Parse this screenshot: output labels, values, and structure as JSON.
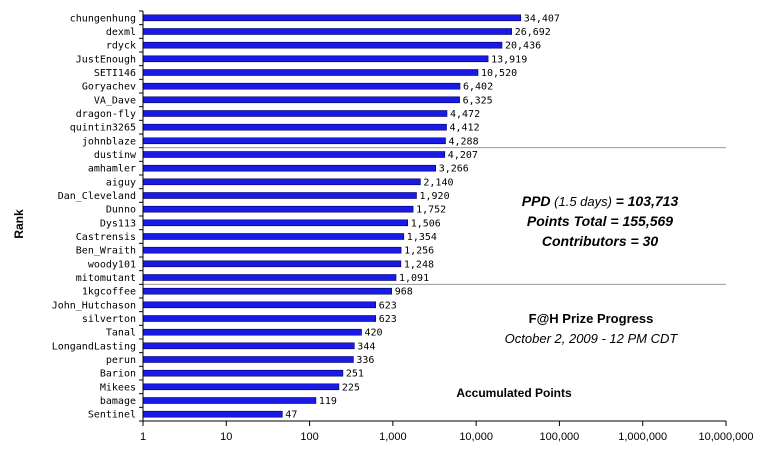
{
  "chart_data": {
    "type": "bar",
    "orientation": "horizontal",
    "x_scale": "log",
    "xlim": [
      1,
      10000000
    ],
    "x_ticks": [
      "1",
      "10",
      "100",
      "1,000",
      "10,000",
      "100,000",
      "1,000,000",
      "10,000,000"
    ],
    "ylabel": "Rank",
    "bar_color": "#1a1ae6",
    "grid": "horizontal lines at category groups of 10",
    "categories": [
      "chungenhung",
      "dexml",
      "rdyck",
      "JustEnough",
      "SETI146",
      "Goryachev",
      "VA_Dave",
      "dragon-fly",
      "quintin3265",
      "johnblaze",
      "dustinw",
      "amhamler",
      "aiguy",
      "Dan_Cleveland",
      "Dunno",
      "Dys113",
      "Castrensis",
      "Ben_Wraith",
      "woody101",
      "mitomutant",
      "1kgcoffee",
      "John_Hutchason",
      "silverton",
      "Tanal",
      "LongandLasting",
      "perun",
      "Barion",
      "Mikees",
      "bamage",
      "Sentinel"
    ],
    "values": [
      34407,
      26692,
      20436,
      13919,
      10520,
      6402,
      6325,
      4472,
      4412,
      4288,
      4207,
      3266,
      2140,
      1920,
      1752,
      1506,
      1354,
      1256,
      1248,
      1091,
      968,
      623,
      623,
      420,
      344,
      336,
      251,
      225,
      119,
      47
    ],
    "value_labels": [
      "34,407",
      "26,692",
      "20,436",
      "13,919",
      "10,520",
      "6,402",
      "6,325",
      "4,472",
      "4,412",
      "4,288",
      "4,207",
      "3,266",
      "2,140",
      "1,920",
      "1,752",
      "1,506",
      "1,354",
      "1,256",
      "1,248",
      "1,091",
      "968",
      "623",
      "623",
      "420",
      "344",
      "336",
      "251",
      "225",
      "119",
      "47"
    ],
    "annotations": {
      "ppd_label": "PPD",
      "ppd_detail": " (1.5 days) ",
      "ppd_value": "= 103,713",
      "points_total": "Points Total = 155,569",
      "contributors": "Contributors = 30",
      "title": "F@H Prize Progress",
      "date": "October 2, 2009 - 12 PM CDT",
      "caption": "Accumulated Points"
    }
  }
}
